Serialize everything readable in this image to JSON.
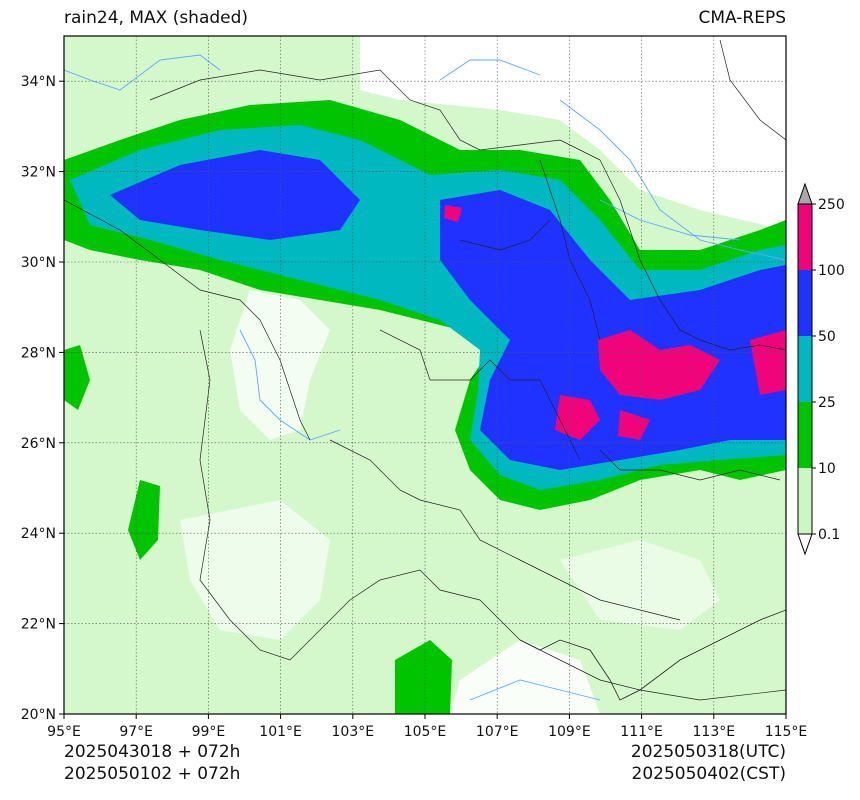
{
  "header": {
    "title_left": "rain24, MAX (shaded)",
    "title_right": "CMA-REPS"
  },
  "footer": {
    "init_utc": "2025043018  +  072h",
    "init_cst": "2025050102  +  072h",
    "valid_utc": "2025050318(UTC)",
    "valid_cst": "2025050402(CST)"
  },
  "map": {
    "lon_range": [
      95,
      115
    ],
    "lat_range": [
      20,
      35
    ],
    "lon_ticks": [
      "95°E",
      "97°E",
      "99°E",
      "101°E",
      "103°E",
      "105°E",
      "107°E",
      "109°E",
      "111°E",
      "113°E",
      "115°E"
    ],
    "lat_ticks": [
      "20°N",
      "22°N",
      "24°N",
      "26°N",
      "28°N",
      "30°N",
      "32°N",
      "34°N"
    ],
    "gridlines": true
  },
  "colorbar": {
    "levels": [
      "0.1",
      "10",
      "25",
      "50",
      "100",
      "250"
    ],
    "colors": [
      "#ccf7c4",
      "#00c400",
      "#00b8c0",
      "#2032ff",
      "#f0047a"
    ],
    "under_color": "#ffffff",
    "over_color": "#a8a8a8",
    "extend": "both"
  },
  "background_color": "#d4f8cc",
  "land_blank_color": "#ffffff"
}
